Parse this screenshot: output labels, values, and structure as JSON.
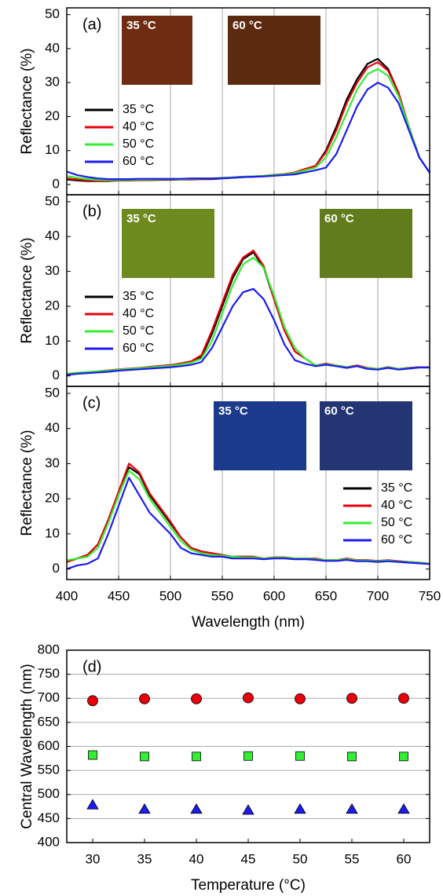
{
  "chart_data": [
    {
      "type": "line",
      "panel_label": "(a)",
      "y_label": "Reflectance (%)",
      "grid": "x",
      "show_xtick_labels": false,
      "legend": "left",
      "xlim": [
        400,
        750
      ],
      "xticks": [
        400,
        450,
        500,
        550,
        600,
        650,
        700,
        750
      ],
      "ylim": [
        -3,
        52
      ],
      "yticks": [
        0,
        10,
        20,
        30,
        40,
        50
      ],
      "insets": [
        {
          "label": "35 °C",
          "color": "#6f2c12"
        },
        {
          "label": "60 °C",
          "color": "#5c2a0f"
        }
      ],
      "x": [
        400,
        410,
        420,
        430,
        440,
        450,
        460,
        470,
        480,
        490,
        500,
        510,
        520,
        530,
        540,
        550,
        560,
        570,
        580,
        590,
        600,
        610,
        620,
        630,
        640,
        650,
        660,
        670,
        680,
        690,
        700,
        710,
        720,
        730,
        740,
        750
      ],
      "series": [
        {
          "name": "35 °C",
          "color": "#000000",
          "values": [
            1.5,
            1.2,
            1.0,
            1.0,
            1.0,
            1.2,
            1.2,
            1.3,
            1.3,
            1.4,
            1.4,
            1.5,
            1.5,
            1.6,
            1.6,
            1.8,
            2.0,
            2.2,
            2.3,
            2.5,
            2.8,
            3.0,
            3.5,
            4.5,
            5.5,
            10,
            17,
            25,
            31,
            35.5,
            37,
            34,
            27,
            17,
            8,
            3.5
          ]
        },
        {
          "name": "40 °C",
          "color": "#e8000b",
          "values": [
            1.8,
            1.5,
            1.2,
            1.1,
            1.1,
            1.3,
            1.3,
            1.4,
            1.4,
            1.5,
            1.5,
            1.6,
            1.6,
            1.7,
            1.7,
            1.9,
            2.1,
            2.3,
            2.4,
            2.6,
            2.9,
            3.1,
            3.6,
            4.6,
            5.5,
            9.5,
            16,
            24,
            30,
            34.5,
            36,
            33.5,
            27,
            17,
            8,
            3.5
          ]
        },
        {
          "name": "50 °C",
          "color": "#33ee33",
          "values": [
            2.5,
            2.0,
            1.6,
            1.4,
            1.3,
            1.4,
            1.4,
            1.5,
            1.5,
            1.6,
            1.6,
            1.6,
            1.7,
            1.8,
            1.8,
            2.0,
            2.1,
            2.3,
            2.4,
            2.6,
            2.8,
            3.0,
            3.4,
            4.2,
            5.0,
            8,
            14,
            21,
            28,
            32.5,
            34,
            32,
            26,
            17,
            8,
            3.5
          ]
        },
        {
          "name": "60 °C",
          "color": "#1c1cf0",
          "values": [
            3.8,
            2.8,
            2.2,
            1.8,
            1.6,
            1.6,
            1.6,
            1.7,
            1.7,
            1.7,
            1.7,
            1.7,
            1.8,
            1.8,
            1.8,
            1.9,
            2.0,
            2.2,
            2.3,
            2.4,
            2.6,
            2.8,
            3.0,
            3.6,
            4.2,
            5,
            9,
            16,
            23,
            28,
            30,
            28.5,
            24,
            16,
            8,
            3.5
          ]
        }
      ]
    },
    {
      "type": "line",
      "panel_label": "(b)",
      "y_label": "Reflectance (%)",
      "grid": "x",
      "show_xtick_labels": false,
      "legend": "left",
      "xlim": [
        400,
        750
      ],
      "xticks": [
        400,
        450,
        500,
        550,
        600,
        650,
        700,
        750
      ],
      "ylim": [
        -3,
        52
      ],
      "yticks": [
        0,
        10,
        20,
        30,
        40,
        50
      ],
      "insets": [
        {
          "label": "35 °C",
          "color": "#6d8a1e"
        },
        {
          "label": "60 °C",
          "color": "#607c1c"
        }
      ],
      "x": [
        400,
        410,
        420,
        430,
        440,
        450,
        460,
        470,
        480,
        490,
        500,
        510,
        520,
        530,
        540,
        550,
        560,
        570,
        580,
        590,
        600,
        610,
        620,
        630,
        640,
        650,
        660,
        670,
        680,
        690,
        700,
        710,
        720,
        730,
        740,
        750
      ],
      "series": [
        {
          "name": "35 °C",
          "color": "#000000",
          "values": [
            0.5,
            0.8,
            1.0,
            1.2,
            1.5,
            1.8,
            2.0,
            2.2,
            2.5,
            2.8,
            3.0,
            3.5,
            4.0,
            5.5,
            12,
            20,
            28,
            33.5,
            35.5,
            31,
            22,
            13,
            7,
            5,
            3,
            3.5,
            3,
            2.5,
            3,
            2.3,
            2,
            2.5,
            2,
            2.3,
            2.5,
            2.5
          ]
        },
        {
          "name": "40 °C",
          "color": "#e8000b",
          "values": [
            0.6,
            0.9,
            1.1,
            1.3,
            1.6,
            1.9,
            2.1,
            2.3,
            2.6,
            2.9,
            3.1,
            3.6,
            4.2,
            6,
            13,
            21,
            29,
            34,
            36,
            31.5,
            22,
            13,
            7,
            5,
            3,
            3.5,
            3,
            2.5,
            3,
            2.3,
            2,
            2.5,
            2,
            2.3,
            2.5,
            2.5
          ]
        },
        {
          "name": "50 °C",
          "color": "#33ee33",
          "values": [
            0.6,
            0.9,
            1.1,
            1.3,
            1.5,
            1.8,
            2.0,
            2.2,
            2.4,
            2.7,
            2.9,
            3.3,
            3.8,
            5,
            10,
            18,
            26,
            32,
            34,
            31,
            23,
            14,
            8,
            5,
            3,
            3.3,
            3,
            2.5,
            2.8,
            2.2,
            2,
            2.4,
            2,
            2.2,
            2.4,
            2.4
          ]
        },
        {
          "name": "60 °C",
          "color": "#1c1cf0",
          "values": [
            0.3,
            0.6,
            0.8,
            1.0,
            1.2,
            1.5,
            1.7,
            1.9,
            2.1,
            2.3,
            2.5,
            2.8,
            3.2,
            4,
            8,
            14,
            20,
            24,
            25,
            22,
            16,
            9,
            4.5,
            3.5,
            2.8,
            3.2,
            2.8,
            2.3,
            2.8,
            2.0,
            1.8,
            2.3,
            1.8,
            2.1,
            2.4,
            2.4
          ]
        }
      ]
    },
    {
      "type": "line",
      "panel_label": "(c)",
      "y_label": "Reflectance (%)",
      "x_label": "Wavelength (nm)",
      "grid": "x",
      "show_xtick_labels": true,
      "legend": "right",
      "xlim": [
        400,
        750
      ],
      "xticks": [
        400,
        450,
        500,
        550,
        600,
        650,
        700,
        750
      ],
      "ylim": [
        -3,
        52
      ],
      "yticks": [
        0,
        10,
        20,
        30,
        40,
        50
      ],
      "insets": [
        {
          "label": "35 °C",
          "color": "#1c3a8c"
        },
        {
          "label": "60 °C",
          "color": "#243574"
        }
      ],
      "x": [
        400,
        410,
        420,
        430,
        440,
        450,
        460,
        470,
        480,
        490,
        500,
        510,
        520,
        530,
        540,
        550,
        560,
        570,
        580,
        590,
        600,
        610,
        620,
        630,
        640,
        650,
        660,
        670,
        680,
        690,
        700,
        710,
        720,
        730,
        740,
        750
      ],
      "series": [
        {
          "name": "35 °C",
          "color": "#000000",
          "values": [
            2,
            3,
            4,
            7,
            14,
            22,
            29,
            27,
            21,
            17,
            13,
            9,
            6,
            5,
            4.5,
            4,
            3.5,
            3.5,
            3.5,
            3,
            3.3,
            3.3,
            3,
            3,
            3,
            2.5,
            2.5,
            3,
            2.5,
            2.5,
            2.3,
            2.5,
            2.2,
            2,
            1.8,
            1.5
          ]
        },
        {
          "name": "40 °C",
          "color": "#e8000b",
          "values": [
            2,
            3,
            4,
            7,
            14,
            22,
            30,
            27.5,
            21.5,
            17.5,
            13.5,
            9,
            6,
            5,
            4.5,
            4,
            3.5,
            3.5,
            3.5,
            3,
            3.3,
            3.3,
            3,
            3,
            3,
            2.5,
            2.5,
            3,
            2.5,
            2.5,
            2.3,
            2.5,
            2.2,
            2,
            1.8,
            1.5
          ]
        },
        {
          "name": "50 °C",
          "color": "#33ee33",
          "values": [
            2.5,
            3,
            3.5,
            6,
            13,
            21,
            28,
            25.5,
            20,
            16,
            12,
            8,
            5.5,
            4.5,
            4,
            3.8,
            3.5,
            3.3,
            3.3,
            3,
            3.2,
            3.2,
            3,
            3,
            2.8,
            2.5,
            2.5,
            2.8,
            2.4,
            2.4,
            2.2,
            2.4,
            2.1,
            2,
            1.8,
            1.5
          ]
        },
        {
          "name": "60 °C",
          "color": "#1c1cf0",
          "values": [
            0,
            1,
            1.5,
            3,
            10,
            18,
            26,
            21,
            16,
            13,
            10,
            6,
            4.5,
            4,
            3.5,
            3.5,
            3,
            3,
            3,
            2.8,
            3,
            3,
            2.8,
            2.8,
            2.6,
            2.3,
            2.3,
            2.6,
            2.2,
            2.2,
            2,
            2.2,
            2,
            1.8,
            1.6,
            1.4
          ]
        }
      ]
    },
    {
      "type": "scatter",
      "panel_label": "(d)",
      "y_label": "Central Wavelength (nm)",
      "x_label": "Temperature (°C)",
      "grid": "y",
      "show_xtick_labels": true,
      "xlim": [
        27.5,
        62.5
      ],
      "xticks": [
        30,
        35,
        40,
        45,
        50,
        55,
        60
      ],
      "ylim": [
        400,
        800
      ],
      "yticks": [
        400,
        450,
        500,
        550,
        600,
        650,
        700,
        750,
        800
      ],
      "x": [
        30,
        35,
        40,
        45,
        50,
        55,
        60
      ],
      "series": [
        {
          "marker": "circle",
          "color": "#e8000b",
          "values": [
            695,
            699,
            699,
            701,
            699,
            700,
            700
          ]
        },
        {
          "marker": "square",
          "color": "#33ee33",
          "values": [
            582,
            579,
            579,
            580,
            580,
            579,
            579
          ]
        },
        {
          "marker": "triangle",
          "color": "#1c1cf0",
          "values": [
            478,
            469,
            469,
            467,
            469,
            469,
            469
          ]
        }
      ]
    }
  ]
}
